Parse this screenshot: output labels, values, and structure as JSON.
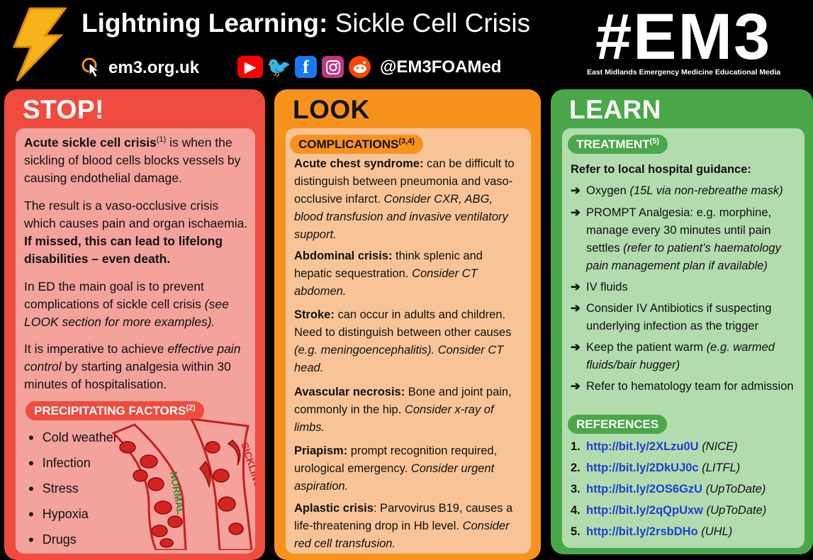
{
  "header": {
    "title_bold": "Lightning Learning:",
    "title_rest": " Sickle Cell Crisis",
    "website": "em3.org.uk",
    "handle": "@EM3FOAMed",
    "logo": "#EM3",
    "logo_sub": "East Midlands Emergency Medicine Educational Media",
    "icons": [
      "lightning-icon",
      "pointer-click-icon",
      "youtube-icon",
      "twitter-icon",
      "facebook-icon",
      "instagram-icon",
      "reddit-icon"
    ],
    "colors": {
      "youtube": "#ff0000",
      "twitter": "#1da1f2",
      "facebook": "#1877f2",
      "instagram": "#c13584",
      "reddit": "#ff4500"
    }
  },
  "stop": {
    "heading": "STOP!",
    "p1_bold": "Acute sickle cell crisis",
    "p1_sup": "(1)",
    "p1_rest": " is when the sickling of blood cells blocks vessels by causing endothelial damage.",
    "p2_a": "The result is a vaso-occlusive crisis which causes pain and organ ischaemia. ",
    "p2_bold": "If missed, this can lead to lifelong disabilities – even death.",
    "p3_a": "In ED the main goal is to prevent complications of sickle cell crisis ",
    "p3_italic": "(see LOOK section for more examples).",
    "p4_a": "It is imperative to achieve ",
    "p4_italic": "effective pain control",
    "p4_b": " by starting analgesia within 30 minutes of hospitalisation.",
    "factors_heading": "PRECIPITATING FACTORS",
    "factors_sup": "(2)",
    "factors": [
      "Cold weather",
      "Infection",
      "Stress",
      "Hypoxia",
      "Drugs"
    ],
    "label_normal": "NORMAL",
    "label_sickling": "SICKLING",
    "color": "#ef4b3e"
  },
  "look": {
    "heading": "LOOK",
    "pill": "COMPLICATIONS",
    "pill_sup": "(3,4)",
    "items": [
      {
        "bold": "Acute chest syndrome:",
        "text": " can be difficult to distinguish between pneumonia and vaso-occlusive infarct. ",
        "italic": "Consider CXR, ABG, blood transfusion and invasive ventilatory support."
      },
      {
        "bold": "Abdominal crisis:",
        "text": " think splenic and hepatic sequestration. ",
        "italic": "Consider CT abdomen."
      },
      {
        "bold": "Stroke:",
        "text": " can occur in adults and children. Need to distinguish between other causes ",
        "italic": "(e.g. meningoencephalitis). Consider CT head."
      },
      {
        "bold": "Avascular necrosis:",
        "text": " Bone and joint pain, commonly in the hip. ",
        "italic": "Consider x-ray of limbs."
      },
      {
        "bold": "Priapism:",
        "text": " prompt recognition required, urological emergency. ",
        "italic": "Consider urgent aspiration."
      },
      {
        "bold": "Aplastic crisis",
        "text": ": Parvovirus B19, causes a life-threatening drop in Hb level. ",
        "italic": "Consider red cell transfusion."
      }
    ],
    "color": "#f7931d"
  },
  "learn": {
    "heading": "LEARN",
    "pill": "TREATMENT",
    "pill_sup": "(5)",
    "intro": "Refer to local hospital guidance:",
    "treatments": [
      {
        "text": "Oxygen ",
        "italic": "(15L via non-rebreathe mask)"
      },
      {
        "text": "PROMPT Analgesia: e.g. morphine, manage every 30 minutes until pain settles ",
        "italic": "(refer to patient’s haematology pain management plan if available)"
      },
      {
        "text": "IV fluids",
        "italic": ""
      },
      {
        "text": "Consider IV Antibiotics if suspecting underlying infection as the trigger",
        "italic": ""
      },
      {
        "text": "Keep the patient warm ",
        "italic": "(e.g. warmed fluids/bair hugger)"
      },
      {
        "text": "Refer to hematology team for admission",
        "italic": ""
      }
    ],
    "arrow": "➔",
    "refs_heading": "REFERENCES",
    "refs": [
      {
        "n": "1.",
        "url": "http://bit.ly/2XLzu0U",
        "src": "(NICE)"
      },
      {
        "n": "2.",
        "url": "http://bit.ly/2DkUJ0c",
        "src": "(LITFL)"
      },
      {
        "n": "3.",
        "url": "http://bit.ly/2OS6GzU",
        "src": "(UpToDate)"
      },
      {
        "n": "4.",
        "url": "http://bit.ly/2qQpUxw",
        "src": "(UpToDate)"
      },
      {
        "n": "5.",
        "url": "http://bit.ly/2rsbDHo",
        "src": "(UHL)"
      }
    ],
    "color": "#4aa74a"
  }
}
